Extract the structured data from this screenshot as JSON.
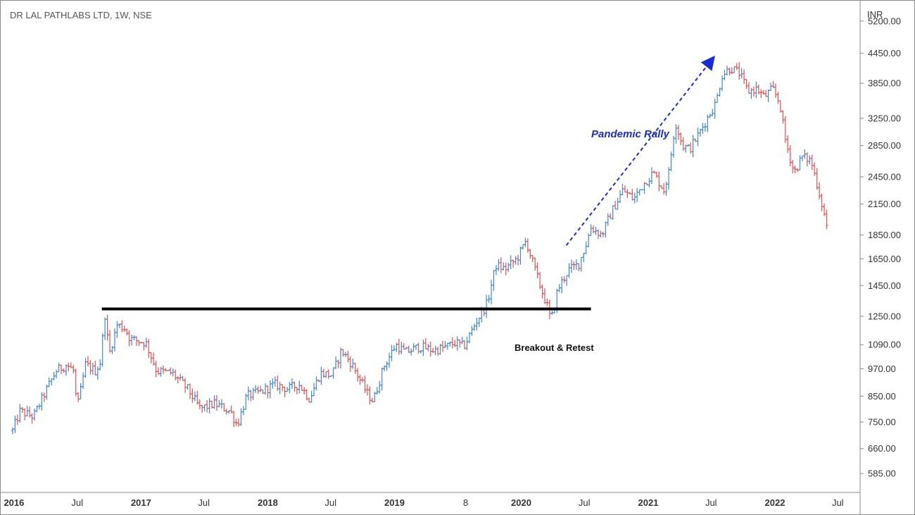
{
  "chart_data": {
    "type": "ohlc",
    "title": "DR LAL PATHLABS LTD, 1W, NSE",
    "currency": "INR",
    "scale": "log",
    "y_ticks": [
      5200,
      4450,
      3850,
      3250,
      2850,
      2450,
      2150,
      1850,
      1650,
      1450,
      1250,
      1090,
      970,
      850,
      750,
      660,
      585
    ],
    "y_tick_labels": [
      "5200.00",
      "4450.00",
      "3850.00",
      "3250.00",
      "2850.00",
      "2450.00",
      "2150.00",
      "1850.00",
      "1650.00",
      "1450.00",
      "1250.00",
      "1090.00",
      "970.00",
      "850.00",
      "750.00",
      "660.00",
      "585.00"
    ],
    "ylim": [
      545,
      5600
    ],
    "xlim": [
      "2015-12-20",
      "2022-08-10"
    ],
    "x_ticks": [
      {
        "date": "2016-01-01",
        "label": "2016",
        "major": true
      },
      {
        "date": "2016-07-01",
        "label": "Jul",
        "major": false
      },
      {
        "date": "2017-01-01",
        "label": "2017",
        "major": true
      },
      {
        "date": "2017-07-01",
        "label": "Jul",
        "major": false
      },
      {
        "date": "2018-01-01",
        "label": "2018",
        "major": true
      },
      {
        "date": "2018-07-01",
        "label": "Jul",
        "major": false
      },
      {
        "date": "2019-01-01",
        "label": "2019",
        "major": true
      },
      {
        "date": "2019-07-25",
        "label": "8",
        "major": false
      },
      {
        "date": "2020-01-01",
        "label": "2020",
        "major": true
      },
      {
        "date": "2020-07-01",
        "label": "Jul",
        "major": false
      },
      {
        "date": "2021-01-01",
        "label": "2021",
        "major": true
      },
      {
        "date": "2021-07-01",
        "label": "Jul",
        "major": false
      },
      {
        "date": "2022-01-01",
        "label": "2022",
        "major": true
      },
      {
        "date": "2022-07-01",
        "label": "Jul",
        "major": false
      }
    ],
    "path": [
      [
        "2015-12-28",
        720
      ],
      [
        "2016-01-18",
        790
      ],
      [
        "2016-02-26",
        770
      ],
      [
        "2016-04-01",
        870
      ],
      [
        "2016-05-01",
        960
      ],
      [
        "2016-06-01",
        990
      ],
      [
        "2016-06-20",
        960
      ],
      [
        "2016-07-01",
        800
      ],
      [
        "2016-07-25",
        990
      ],
      [
        "2016-08-22",
        960
      ],
      [
        "2016-09-05",
        1000
      ],
      [
        "2016-09-19",
        1260
      ],
      [
        "2016-10-01",
        1040
      ],
      [
        "2016-10-24",
        1200
      ],
      [
        "2016-11-15",
        1180
      ],
      [
        "2016-12-01",
        1120
      ],
      [
        "2017-01-15",
        1100
      ],
      [
        "2017-02-15",
        960
      ],
      [
        "2017-04-01",
        950
      ],
      [
        "2017-05-15",
        880
      ],
      [
        "2017-06-20",
        800
      ],
      [
        "2017-08-01",
        820
      ],
      [
        "2017-09-15",
        790
      ],
      [
        "2017-10-05",
        740
      ],
      [
        "2017-11-01",
        850
      ],
      [
        "2017-12-15",
        870
      ],
      [
        "2018-01-20",
        900
      ],
      [
        "2018-03-01",
        880
      ],
      [
        "2018-04-01",
        900
      ],
      [
        "2018-05-01",
        840
      ],
      [
        "2018-06-01",
        950
      ],
      [
        "2018-07-05",
        940
      ],
      [
        "2018-08-01",
        1060
      ],
      [
        "2018-09-01",
        990
      ],
      [
        "2018-10-15",
        860
      ],
      [
        "2018-11-01",
        830
      ],
      [
        "2018-12-01",
        980
      ],
      [
        "2019-01-05",
        1090
      ],
      [
        "2019-02-01",
        1050
      ],
      [
        "2019-03-15",
        1080
      ],
      [
        "2019-04-25",
        1060
      ],
      [
        "2019-06-01",
        1080
      ],
      [
        "2019-06-25",
        1100
      ],
      [
        "2019-07-20",
        1080
      ],
      [
        "2019-08-25",
        1220
      ],
      [
        "2019-09-25",
        1330
      ],
      [
        "2019-10-20",
        1600
      ],
      [
        "2019-11-15",
        1570
      ],
      [
        "2019-12-20",
        1650
      ],
      [
        "2020-01-15",
        1800
      ],
      [
        "2020-02-20",
        1480
      ],
      [
        "2020-03-15",
        1320
      ],
      [
        "2020-03-27",
        1220
      ],
      [
        "2020-04-15",
        1420
      ],
      [
        "2020-05-15",
        1560
      ],
      [
        "2020-06-15",
        1610
      ],
      [
        "2020-07-05",
        1760
      ],
      [
        "2020-07-20",
        1920
      ],
      [
        "2020-08-20",
        1850
      ],
      [
        "2020-09-15",
        2050
      ],
      [
        "2020-10-20",
        2300
      ],
      [
        "2020-11-20",
        2200
      ],
      [
        "2020-12-15",
        2350
      ],
      [
        "2021-01-15",
        2500
      ],
      [
        "2021-02-15",
        2300
      ],
      [
        "2021-03-01",
        2500
      ],
      [
        "2021-03-20",
        3200
      ],
      [
        "2021-04-10",
        2850
      ],
      [
        "2021-04-30",
        2800
      ],
      [
        "2021-05-25",
        3000
      ],
      [
        "2021-06-25",
        3300
      ],
      [
        "2021-07-15",
        3500
      ],
      [
        "2021-08-01",
        4000
      ],
      [
        "2021-08-25",
        4150
      ],
      [
        "2021-09-20",
        4050
      ],
      [
        "2021-10-15",
        3700
      ],
      [
        "2021-11-10",
        3750
      ],
      [
        "2021-12-01",
        3600
      ],
      [
        "2021-12-25",
        3750
      ],
      [
        "2022-01-15",
        3500
      ],
      [
        "2022-01-30",
        2950
      ],
      [
        "2022-02-25",
        2500
      ],
      [
        "2022-03-20",
        2700
      ],
      [
        "2022-04-15",
        2650
      ],
      [
        "2022-05-10",
        2250
      ],
      [
        "2022-06-03",
        1880
      ]
    ],
    "annotations": {
      "pandemic_rally": "Pandemic Rally",
      "breakout_retest": "Breakout & Retest"
    },
    "horizontal_line": {
      "price": 1295,
      "from": "2016-09-10",
      "to": "2020-07-20"
    },
    "trend_arrow": {
      "from_date": "2020-05-10",
      "from_price": 1760,
      "to_date": "2021-07-05",
      "to_price": 4330
    },
    "colors": {
      "up": "#3d86d6",
      "down": "#ea4d4d",
      "arrow": "#1a2bd6",
      "line": "#000000"
    }
  }
}
